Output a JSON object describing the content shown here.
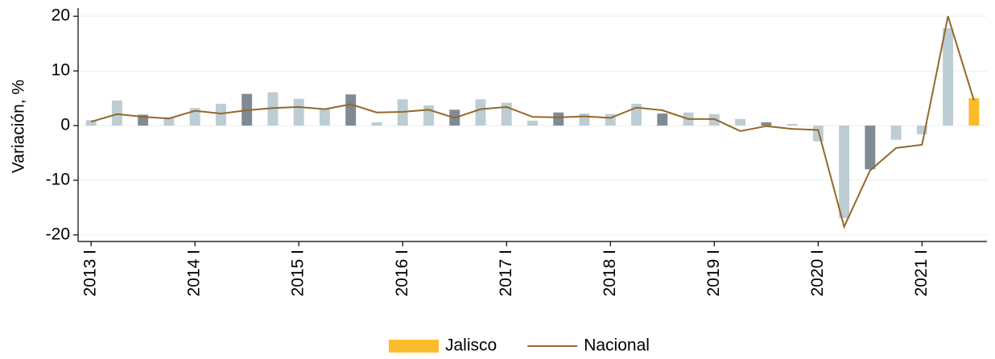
{
  "chart_data": {
    "type": "bar-line",
    "y_label": "Variación, %",
    "categories": [
      "2013 I",
      null,
      null,
      null,
      "2014 I",
      null,
      null,
      null,
      "2015 I",
      null,
      null,
      null,
      "2016 I",
      null,
      null,
      null,
      "2017 I",
      null,
      null,
      null,
      "2018 I",
      null,
      null,
      null,
      "2019 I",
      null,
      null,
      null,
      "2020 I",
      null,
      null,
      null,
      "2021 I",
      null,
      null
    ],
    "series": [
      {
        "name": "Jalisco",
        "kind": "bar",
        "color": "#fbbc2c",
        "colors": [
          "#bccdd3",
          "#bccdd3",
          "#7f8a92",
          "#bccdd3",
          "#bccdd3",
          "#bccdd3",
          "#7f8a92",
          "#bccdd3",
          "#bccdd3",
          "#bccdd3",
          "#7f8a92",
          "#bccdd3",
          "#bccdd3",
          "#bccdd3",
          "#7f8a92",
          "#bccdd3",
          "#bccdd3",
          "#bccdd3",
          "#7f8a92",
          "#bccdd3",
          "#bccdd3",
          "#bccdd3",
          "#7f8a92",
          "#bccdd3",
          "#bccdd3",
          "#bccdd3",
          "#7f8a92",
          "#bccdd3",
          "#bccdd3",
          "#bccdd3",
          "#7f8a92",
          "#bccdd3",
          "#bccdd3",
          "#bccdd3",
          "#fbbc2c"
        ],
        "values": [
          1.0,
          4.6,
          2.0,
          1.5,
          3.2,
          4.0,
          5.8,
          6.1,
          4.9,
          3.1,
          5.7,
          0.6,
          4.8,
          3.7,
          2.9,
          4.8,
          4.2,
          0.9,
          2.4,
          2.2,
          2.1,
          4.0,
          2.2,
          2.4,
          2.1,
          1.2,
          0.6,
          0.3,
          -2.9,
          -16.9,
          -8.0,
          -2.6,
          -1.6,
          17.8,
          5.0
        ]
      },
      {
        "name": "Nacional",
        "kind": "line",
        "color": "#93682a",
        "values": [
          0.7,
          2.1,
          1.6,
          1.3,
          2.7,
          2.2,
          2.8,
          3.2,
          3.4,
          3.0,
          3.9,
          2.4,
          2.5,
          2.9,
          1.4,
          3.0,
          3.4,
          1.6,
          1.5,
          1.7,
          1.4,
          3.3,
          2.8,
          1.2,
          1.2,
          -1.0,
          -0.1,
          -0.6,
          -0.8,
          -18.5,
          -8.2,
          -4.1,
          -3.5,
          20.0,
          4.6
        ]
      }
    ],
    "ylim": [
      -21.2,
      21.5
    ],
    "yticks": [
      20,
      10,
      0,
      -10,
      -20
    ],
    "grid": true,
    "legend": "bottom"
  }
}
